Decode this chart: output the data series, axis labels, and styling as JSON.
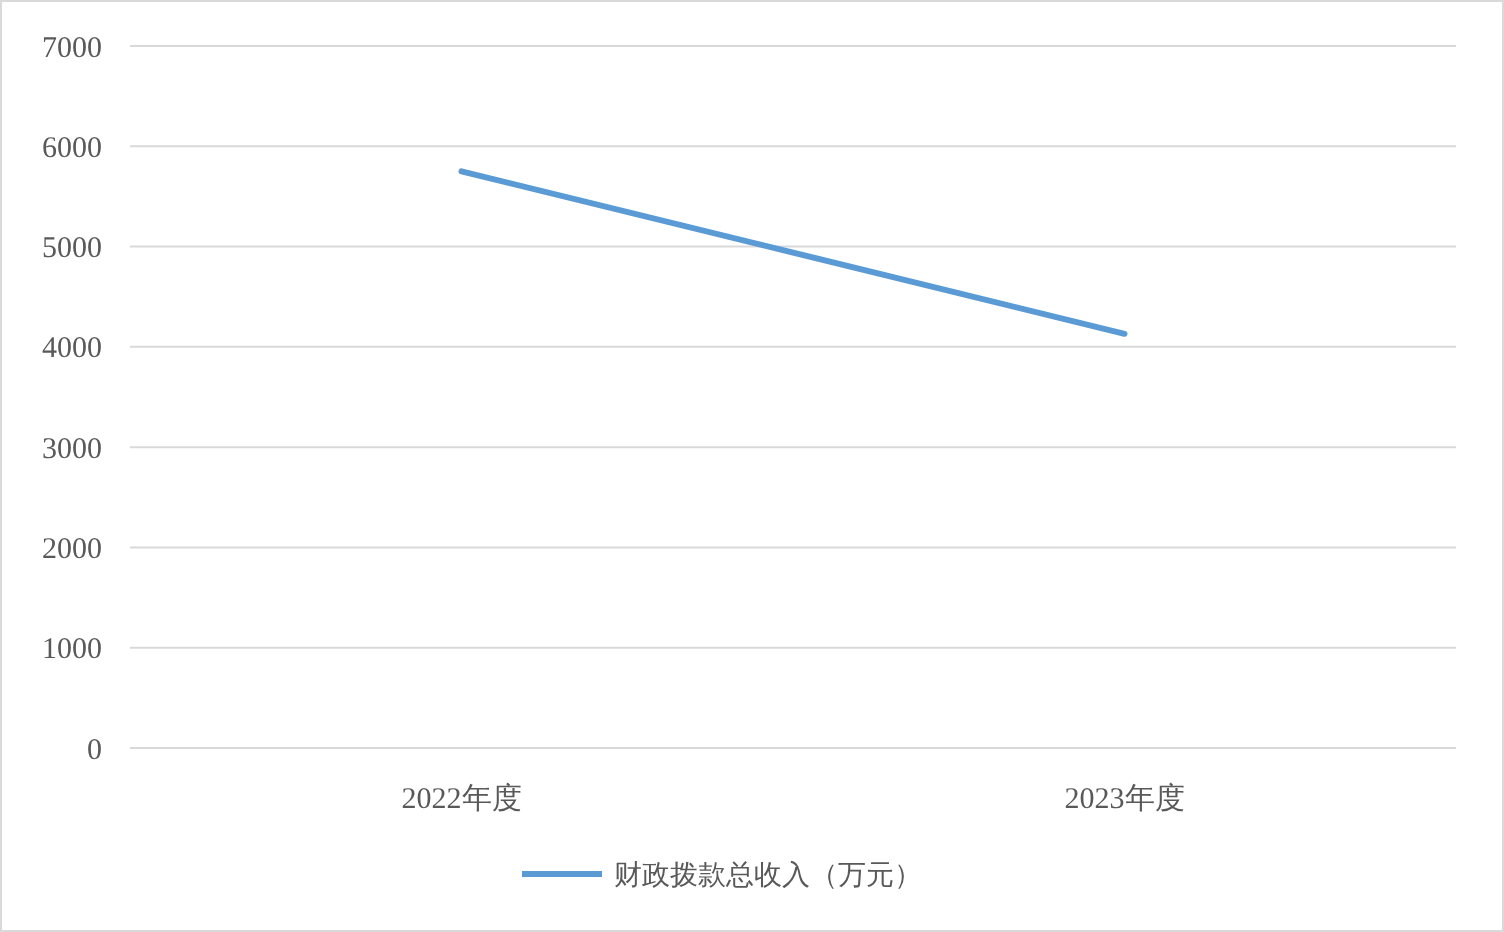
{
  "chart_data": {
    "type": "line",
    "categories": [
      "2022年度",
      "2023年度"
    ],
    "series": [
      {
        "name": "财政拨款总收入（万元）",
        "color": "#5b9bd5",
        "values": [
          5750,
          4130
        ]
      }
    ],
    "ylim": [
      0,
      7000
    ],
    "yticks": [
      0,
      1000,
      2000,
      3000,
      4000,
      5000,
      6000,
      7000
    ],
    "grid": "y",
    "legend": "bottom",
    "marker": "none"
  }
}
